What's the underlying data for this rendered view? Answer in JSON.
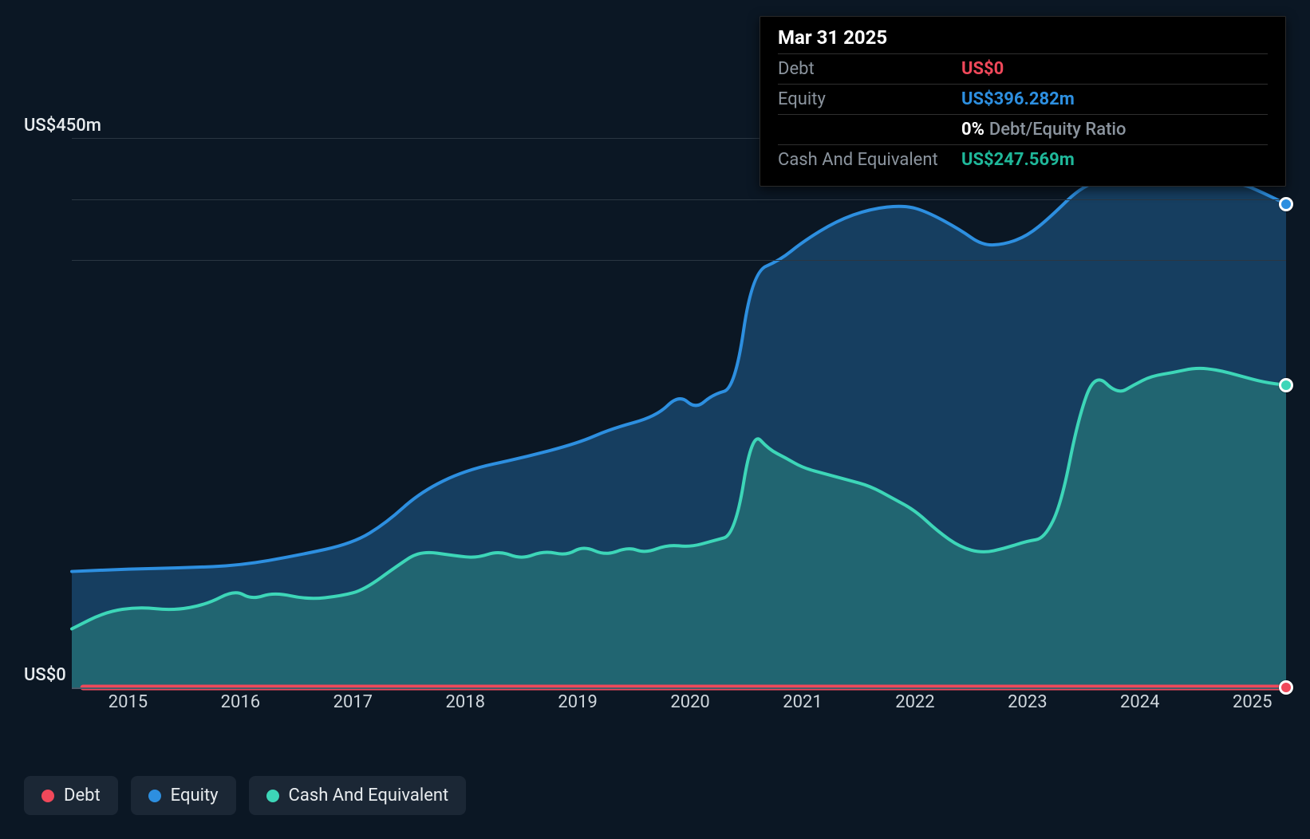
{
  "chart": {
    "type": "area",
    "background_color": "#0b1724",
    "grid_color": "#2a3642",
    "baseline_color": "#4a5a68",
    "text_color": "#cfd6dc",
    "label_color": "#e7ebee",
    "x_years": [
      2015,
      2016,
      2017,
      2018,
      2019,
      2020,
      2021,
      2022,
      2023,
      2024,
      2025
    ],
    "y_min": 0,
    "y_max": 550,
    "y_ticks": [
      {
        "v": 0,
        "label": "US$0"
      },
      {
        "v": 450,
        "label": "US$450m"
      }
    ],
    "y_grid_extra": [
      350,
      400
    ],
    "series": [
      {
        "name": "Equity",
        "color": "#2d8fe0",
        "fill": "rgba(35,110,170,0.45)",
        "line_width": 4,
        "points_yr": [
          [
            2014.5,
            95
          ],
          [
            2015.0,
            97
          ],
          [
            2015.5,
            98
          ],
          [
            2016.0,
            100
          ],
          [
            2016.5,
            108
          ],
          [
            2017.0,
            118
          ],
          [
            2017.3,
            135
          ],
          [
            2017.6,
            160
          ],
          [
            2018.0,
            178
          ],
          [
            2018.5,
            188
          ],
          [
            2019.0,
            200
          ],
          [
            2019.3,
            212
          ],
          [
            2019.7,
            222
          ],
          [
            2019.9,
            240
          ],
          [
            2020.05,
            228
          ],
          [
            2020.2,
            240
          ],
          [
            2020.4,
            245
          ],
          [
            2020.55,
            340
          ],
          [
            2020.8,
            350
          ],
          [
            2021.0,
            365
          ],
          [
            2021.3,
            382
          ],
          [
            2021.6,
            392
          ],
          [
            2021.9,
            395
          ],
          [
            2022.1,
            390
          ],
          [
            2022.4,
            375
          ],
          [
            2022.6,
            362
          ],
          [
            2022.8,
            363
          ],
          [
            2023.0,
            370
          ],
          [
            2023.2,
            385
          ],
          [
            2023.5,
            412
          ],
          [
            2023.8,
            418
          ],
          [
            2024.0,
            412
          ],
          [
            2024.3,
            413
          ],
          [
            2024.6,
            415
          ],
          [
            2024.9,
            413
          ],
          [
            2025.1,
            405
          ],
          [
            2025.3,
            396
          ]
        ]
      },
      {
        "name": "Cash And Equivalent",
        "color": "#3dd6b8",
        "fill": "rgba(50,160,140,0.40)",
        "line_width": 4,
        "points_yr": [
          [
            2014.5,
            48
          ],
          [
            2014.8,
            62
          ],
          [
            2015.1,
            66
          ],
          [
            2015.4,
            63
          ],
          [
            2015.7,
            68
          ],
          [
            2015.95,
            80
          ],
          [
            2016.1,
            72
          ],
          [
            2016.3,
            78
          ],
          [
            2016.6,
            72
          ],
          [
            2016.9,
            75
          ],
          [
            2017.1,
            80
          ],
          [
            2017.4,
            100
          ],
          [
            2017.6,
            112
          ],
          [
            2017.9,
            108
          ],
          [
            2018.1,
            106
          ],
          [
            2018.3,
            112
          ],
          [
            2018.5,
            105
          ],
          [
            2018.7,
            112
          ],
          [
            2018.9,
            108
          ],
          [
            2019.05,
            116
          ],
          [
            2019.25,
            108
          ],
          [
            2019.45,
            115
          ],
          [
            2019.6,
            110
          ],
          [
            2019.8,
            117
          ],
          [
            2020.0,
            115
          ],
          [
            2020.2,
            120
          ],
          [
            2020.4,
            125
          ],
          [
            2020.55,
            210
          ],
          [
            2020.7,
            195
          ],
          [
            2020.85,
            188
          ],
          [
            2021.0,
            180
          ],
          [
            2021.2,
            175
          ],
          [
            2021.4,
            170
          ],
          [
            2021.6,
            165
          ],
          [
            2021.8,
            155
          ],
          [
            2022.0,
            145
          ],
          [
            2022.2,
            128
          ],
          [
            2022.4,
            115
          ],
          [
            2022.6,
            110
          ],
          [
            2022.8,
            114
          ],
          [
            2023.0,
            120
          ],
          [
            2023.15,
            122
          ],
          [
            2023.3,
            150
          ],
          [
            2023.45,
            220
          ],
          [
            2023.6,
            258
          ],
          [
            2023.8,
            240
          ],
          [
            2023.95,
            248
          ],
          [
            2024.1,
            255
          ],
          [
            2024.3,
            258
          ],
          [
            2024.5,
            262
          ],
          [
            2024.7,
            260
          ],
          [
            2024.9,
            255
          ],
          [
            2025.1,
            250
          ],
          [
            2025.3,
            247.6
          ]
        ]
      },
      {
        "name": "Debt",
        "color": "#f0485a",
        "fill": "rgba(240,72,90,0.9)",
        "line_width": 7,
        "points_yr": [
          [
            2014.6,
            0
          ],
          [
            2025.3,
            0
          ]
        ]
      }
    ],
    "end_markers": [
      {
        "series": "Equity",
        "x_yr": 2025.3,
        "y": 396,
        "color": "#2d8fe0"
      },
      {
        "series": "Cash And Equivalent",
        "x_yr": 2025.3,
        "y": 247.6,
        "color": "#3dd6b8"
      },
      {
        "series": "Debt",
        "x_yr": 2025.3,
        "y": 0,
        "color": "#f0485a"
      }
    ]
  },
  "tooltip": {
    "date": "Mar 31 2025",
    "rows": [
      {
        "label": "Debt",
        "value": "US$0",
        "color": "#f0485a"
      },
      {
        "label": "Equity",
        "value": "US$396.282m",
        "color": "#2d8fe0"
      },
      {
        "label": "",
        "value": "0%",
        "suffix": "Debt/Equity Ratio",
        "is_ratio": true
      },
      {
        "label": "Cash And Equivalent",
        "value": "US$247.569m",
        "color": "#1fb89a"
      }
    ]
  },
  "legend": {
    "items": [
      {
        "label": "Debt",
        "color": "#f0485a"
      },
      {
        "label": "Equity",
        "color": "#2d8fe0"
      },
      {
        "label": "Cash And Equivalent",
        "color": "#3dd6b8"
      }
    ],
    "bg": "#1b2735"
  }
}
